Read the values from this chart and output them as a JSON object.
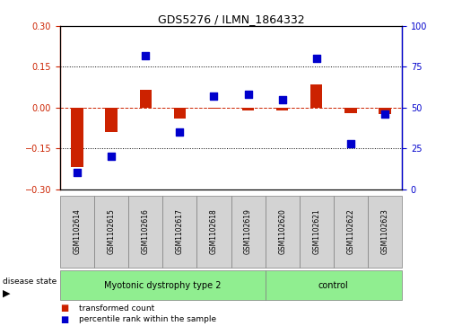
{
  "title": "GDS5276 / ILMN_1864332",
  "samples": [
    "GSM1102614",
    "GSM1102615",
    "GSM1102616",
    "GSM1102617",
    "GSM1102618",
    "GSM1102619",
    "GSM1102620",
    "GSM1102621",
    "GSM1102622",
    "GSM1102623"
  ],
  "transformed_count": [
    -0.22,
    -0.09,
    0.065,
    -0.04,
    -0.005,
    -0.01,
    -0.01,
    0.085,
    -0.02,
    -0.025
  ],
  "percentile_rank": [
    10,
    20,
    82,
    35,
    57,
    58,
    55,
    80,
    28,
    46
  ],
  "ylim_left": [
    -0.3,
    0.3
  ],
  "ylim_right": [
    0,
    100
  ],
  "yticks_left": [
    -0.3,
    -0.15,
    0.0,
    0.15,
    0.3
  ],
  "yticks_right": [
    0,
    25,
    50,
    75,
    100
  ],
  "hlines": [
    0.15,
    -0.15
  ],
  "red_line_y": 0.0,
  "group0_label": "Myotonic dystrophy type 2",
  "group0_n": 6,
  "group1_label": "control",
  "group1_n": 4,
  "group_color": "#90EE90",
  "disease_state_label": "disease state",
  "bar_color": "#CC2200",
  "dot_color": "#0000CC",
  "bar_width": 0.35,
  "dot_size": 28,
  "background_color": "#FFFFFF",
  "tick_color_left": "#CC2200",
  "tick_color_right": "#0000CC",
  "sample_box_color": "#D3D3D3",
  "legend_red_label": "transformed count",
  "legend_blue_label": "percentile rank within the sample"
}
